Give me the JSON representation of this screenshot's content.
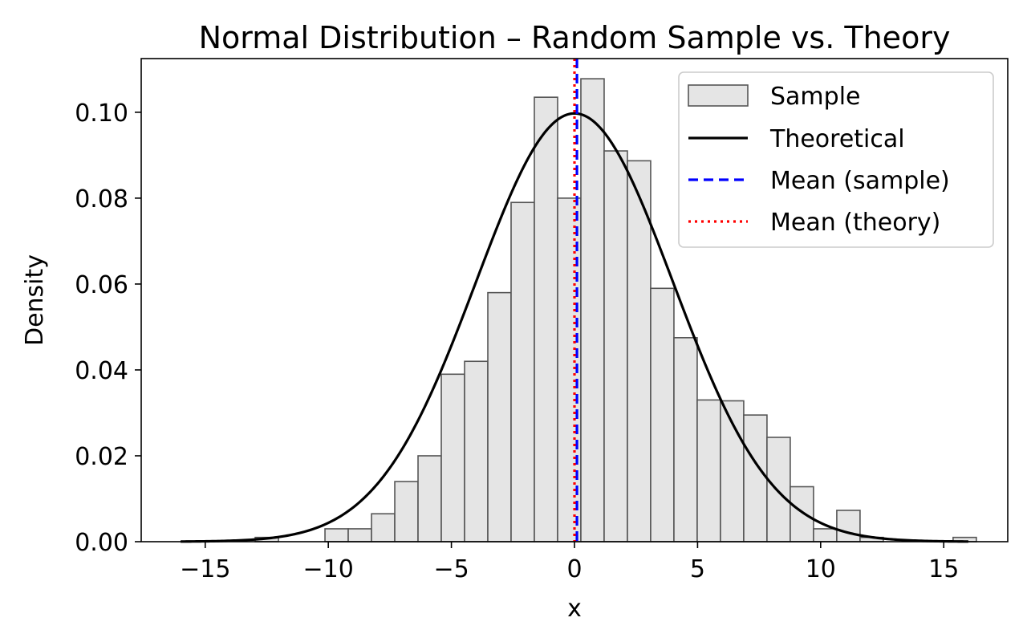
{
  "chart_data": {
    "type": "histogram",
    "title": "Normal Distribution – Random Sample vs. Theory",
    "xlabel": "x",
    "ylabel": "Density",
    "xlim": [
      -17.6,
      17.6
    ],
    "ylim": [
      0,
      0.1125
    ],
    "xticks": [
      -15,
      -10,
      -5,
      0,
      5,
      10,
      15
    ],
    "xtick_labels": [
      "−15",
      "−10",
      "−5",
      "0",
      "5",
      "10",
      "15"
    ],
    "yticks": [
      0,
      0.02,
      0.04,
      0.06,
      0.08,
      0.1
    ],
    "ytick_labels": [
      "0.00",
      "0.02",
      "0.04",
      "0.06",
      "0.08",
      "0.10"
    ],
    "grid": false,
    "legend_position": "upper-right",
    "histogram": {
      "name": "Sample",
      "color": "#e5e5e5",
      "edge_color": "#555555",
      "bin_start": -12.97,
      "bin_width": 0.945,
      "density": [
        0.001,
        0,
        0,
        0.003,
        0.003,
        0.0065,
        0.014,
        0.02,
        0.039,
        0.042,
        0.058,
        0.079,
        0.1035,
        0.08,
        0.1078,
        0.091,
        0.0887,
        0.059,
        0.0475,
        0.033,
        0.0328,
        0.0295,
        0.0243,
        0.0128,
        0.003,
        0.0073,
        0.001,
        0,
        0,
        0,
        0.001
      ]
    },
    "theoretical_curve": {
      "name": "Theoretical",
      "distribution": "normal",
      "mean": 0,
      "std": 4,
      "x_range": [
        -16,
        16
      ],
      "color": "#000000"
    },
    "mean_lines": [
      {
        "name": "Mean (sample)",
        "x": 0.1,
        "color": "#0000ff",
        "style": "dashed"
      },
      {
        "name": "Mean (theory)",
        "x": 0,
        "color": "#ff0000",
        "style": "dotted"
      }
    ]
  }
}
